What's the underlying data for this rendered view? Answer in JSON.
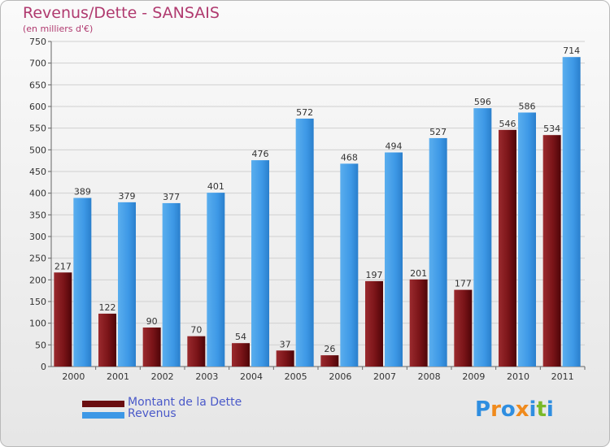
{
  "title": "Revenus/Dette - SANSAIS",
  "subtitle": "(en milliers d'€)",
  "colors": {
    "debt": "#7a1418",
    "revenue": "#2f8ee0",
    "title": "#b03a6f",
    "legend_text": "#4a59c9"
  },
  "legend": [
    {
      "label": "Montant de la Dette",
      "color": "#6a0d10"
    },
    {
      "label": "Revenus",
      "color": "#3d98e6"
    }
  ],
  "logo": {
    "text": "Proxiti",
    "letters": [
      "P",
      "r",
      "o",
      "x",
      "i",
      "t",
      "i"
    ],
    "colors": [
      "#2f8ee0",
      "#f08a1c",
      "#2f8ee0",
      "#f08a1c",
      "#2f8ee0",
      "#7ab929",
      "#2f8ee0"
    ]
  },
  "chart_data": {
    "type": "bar",
    "title": "Revenus/Dette - SANSAIS",
    "subtitle": "(en milliers d'€)",
    "categories": [
      "2000",
      "2001",
      "2002",
      "2003",
      "2004",
      "2005",
      "2006",
      "2007",
      "2008",
      "2009",
      "2010",
      "2011"
    ],
    "series": [
      {
        "name": "Montant de la Dette",
        "values": [
          217,
          122,
          90,
          70,
          54,
          37,
          26,
          197,
          201,
          177,
          546,
          534
        ]
      },
      {
        "name": "Revenus",
        "values": [
          389,
          379,
          377,
          401,
          476,
          572,
          468,
          494,
          527,
          596,
          586,
          714
        ]
      }
    ],
    "ylim": [
      0,
      750
    ],
    "yticks": [
      0,
      50,
      100,
      150,
      200,
      250,
      300,
      350,
      400,
      450,
      500,
      550,
      600,
      650,
      700,
      750
    ],
    "grid": true,
    "legend_position": "bottom-left"
  }
}
